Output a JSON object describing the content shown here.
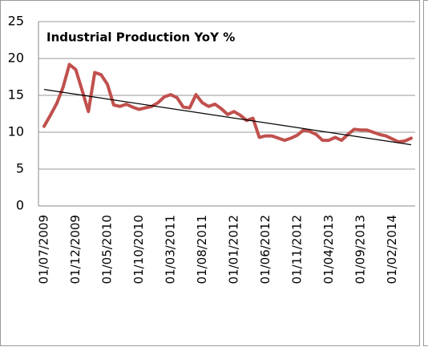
{
  "chart_data": {
    "type": "line",
    "title": "Industrial Production YoY %",
    "categories": [
      "01/07/2009",
      null,
      null,
      null,
      null,
      "01/12/2009",
      null,
      null,
      null,
      null,
      "01/05/2010",
      null,
      null,
      null,
      null,
      "01/10/2010",
      null,
      null,
      null,
      null,
      "01/03/2011",
      null,
      null,
      null,
      null,
      "01/08/2011",
      null,
      null,
      null,
      null,
      "01/01/2012",
      null,
      null,
      null,
      null,
      "01/06/2012",
      null,
      null,
      null,
      null,
      "01/11/2012",
      null,
      null,
      null,
      null,
      "01/04/2013",
      null,
      null,
      null,
      null,
      "01/09/2013",
      null,
      null,
      null,
      null,
      "01/02/2014",
      null,
      null,
      null
    ],
    "values": [
      10.8,
      12.3,
      13.9,
      16.1,
      19.2,
      18.5,
      15.7,
      12.8,
      18.1,
      17.8,
      16.5,
      13.7,
      13.5,
      13.8,
      13.4,
      13.1,
      13.3,
      13.5,
      14.0,
      14.8,
      15.1,
      14.7,
      13.4,
      13.3,
      15.1,
      14.0,
      13.5,
      13.8,
      13.2,
      12.4,
      12.8,
      12.3,
      11.6,
      11.9,
      9.3,
      9.5,
      9.5,
      9.2,
      8.9,
      9.2,
      9.6,
      10.3,
      10.1,
      9.7,
      8.9,
      8.9,
      9.3,
      8.9,
      9.7,
      10.4,
      10.3,
      10.3,
      10.0,
      9.7,
      9.5,
      9.1,
      8.7,
      8.8,
      9.2
    ],
    "color": "#c0504d",
    "trend_values": [
      15.8,
      8.3
    ],
    "trend_color": "#000000",
    "ylim": [
      0,
      25
    ],
    "yticks": [
      0,
      5,
      10,
      15,
      20,
      25
    ],
    "grid": true
  }
}
